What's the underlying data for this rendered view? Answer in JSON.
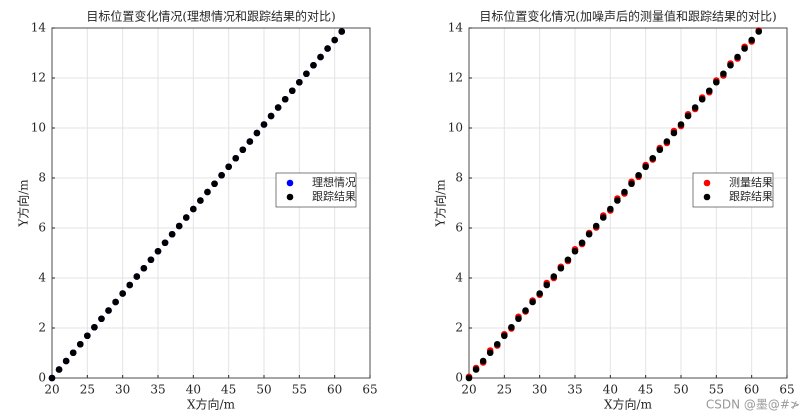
{
  "chart_data": [
    {
      "type": "scatter",
      "title": "目标位置变化情况(理想情况和跟踪结果的对比)",
      "xlabel": "X方向/m",
      "ylabel": "Y方向/m",
      "x": [
        20,
        21,
        22,
        23,
        24,
        25,
        26,
        27,
        28,
        29,
        30,
        31,
        32,
        33,
        34,
        35,
        36,
        37,
        38,
        39,
        40,
        41,
        42,
        43,
        44,
        45,
        46,
        47,
        48,
        49,
        50,
        51,
        52,
        53,
        54,
        55,
        56,
        57,
        58,
        59,
        60,
        61
      ],
      "series": [
        {
          "name": "理想情况",
          "color": "#0000ff",
          "values": [
            0,
            0.34,
            0.68,
            1.01,
            1.35,
            1.69,
            2.03,
            2.37,
            2.7,
            3.04,
            3.38,
            3.72,
            4.06,
            4.39,
            4.73,
            5.07,
            5.41,
            5.75,
            6.08,
            6.42,
            6.76,
            7.1,
            7.44,
            7.77,
            8.11,
            8.45,
            8.79,
            9.13,
            9.46,
            9.8,
            10.14,
            10.48,
            10.82,
            11.15,
            11.49,
            11.83,
            12.17,
            12.51,
            12.84,
            13.18,
            13.52,
            13.86
          ]
        },
        {
          "name": "跟踪结果",
          "color": "#000000",
          "values": [
            0,
            0.34,
            0.68,
            1.01,
            1.35,
            1.69,
            2.03,
            2.37,
            2.7,
            3.04,
            3.38,
            3.72,
            4.06,
            4.39,
            4.73,
            5.07,
            5.41,
            5.75,
            6.08,
            6.42,
            6.76,
            7.1,
            7.44,
            7.77,
            8.11,
            8.45,
            8.79,
            9.13,
            9.46,
            9.8,
            10.14,
            10.48,
            10.82,
            11.15,
            11.49,
            11.83,
            12.17,
            12.51,
            12.84,
            13.18,
            13.52,
            13.86
          ]
        }
      ],
      "xlim": [
        20,
        65
      ],
      "xticks": [
        20,
        25,
        30,
        35,
        40,
        45,
        50,
        55,
        60,
        65
      ],
      "ylim": [
        0,
        14
      ],
      "yticks": [
        0,
        2,
        4,
        6,
        8,
        10,
        12,
        14
      ],
      "grid": true,
      "legend": "right"
    },
    {
      "type": "scatter",
      "title": "目标位置变化情况(加噪声后的测量值和跟踪结果的对比)",
      "xlabel": "X方向/m",
      "ylabel": "Y方向/m",
      "x": [
        20,
        21,
        22,
        23,
        24,
        25,
        26,
        27,
        28,
        29,
        30,
        31,
        32,
        33,
        34,
        35,
        36,
        37,
        38,
        39,
        40,
        41,
        42,
        43,
        44,
        45,
        46,
        47,
        48,
        49,
        50,
        51,
        52,
        53,
        54,
        55,
        56,
        57,
        58,
        59,
        60,
        61
      ],
      "series": [
        {
          "name": "测量结果",
          "color": "#ff0000",
          "values": [
            0.05,
            0.4,
            0.62,
            1.1,
            1.3,
            1.75,
            1.98,
            2.45,
            2.66,
            3.1,
            3.33,
            3.8,
            4.0,
            4.45,
            4.68,
            5.15,
            5.36,
            5.8,
            6.02,
            6.5,
            6.7,
            7.18,
            7.38,
            7.85,
            8.05,
            8.52,
            8.74,
            9.2,
            9.4,
            9.88,
            10.08,
            10.55,
            10.76,
            11.22,
            11.43,
            11.9,
            12.1,
            12.58,
            12.78,
            13.25,
            13.46,
            13.9
          ]
        },
        {
          "name": "跟踪结果",
          "color": "#000000",
          "values": [
            0,
            0.34,
            0.68,
            1.01,
            1.35,
            1.69,
            2.03,
            2.37,
            2.7,
            3.04,
            3.38,
            3.72,
            4.06,
            4.39,
            4.73,
            5.07,
            5.41,
            5.75,
            6.08,
            6.42,
            6.76,
            7.1,
            7.44,
            7.77,
            8.11,
            8.45,
            8.79,
            9.13,
            9.46,
            9.8,
            10.14,
            10.48,
            10.82,
            11.15,
            11.49,
            11.83,
            12.17,
            12.51,
            12.84,
            13.18,
            13.52,
            13.86
          ]
        }
      ],
      "xlim": [
        20,
        65
      ],
      "xticks": [
        20,
        25,
        30,
        35,
        40,
        45,
        50,
        55,
        60,
        65
      ],
      "ylim": [
        0,
        14
      ],
      "yticks": [
        0,
        2,
        4,
        6,
        8,
        10,
        12,
        14
      ],
      "grid": true,
      "legend": "right"
    }
  ],
  "watermark": "CSDN @墨@#≯"
}
